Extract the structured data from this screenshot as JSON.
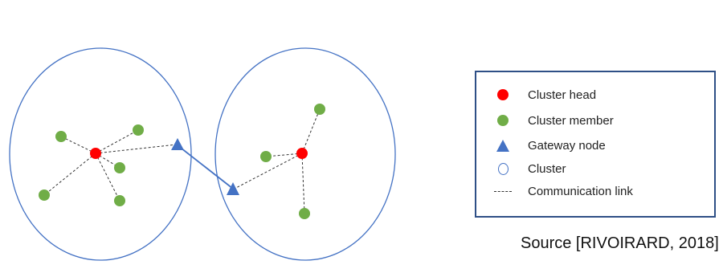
{
  "colors": {
    "cluster_head": "#ff0000",
    "cluster_member": "#70ad47",
    "gateway": "#4472c4",
    "cluster_outline": "#4472c4",
    "link": "#333333",
    "legend_border": "#2e4f86"
  },
  "legend": {
    "items": [
      {
        "symbol": "red-dot-icon",
        "label": "Cluster head"
      },
      {
        "symbol": "green-dot-icon",
        "label": "Cluster member"
      },
      {
        "symbol": "blue-triangle-icon",
        "label": "Gateway node"
      },
      {
        "symbol": "circle-outline-icon",
        "label": "Cluster"
      },
      {
        "symbol": "dashed-line-icon",
        "label": "Communication link"
      }
    ]
  },
  "source": "Source [RIVOIRARD, 2018]"
}
